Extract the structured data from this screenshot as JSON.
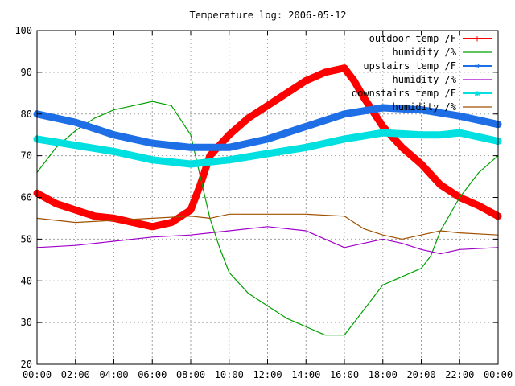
{
  "chart_data": {
    "type": "line",
    "title": "Temperature log: 2006-05-12",
    "xlabel": "",
    "ylabel": "",
    "grid": true,
    "legend_position": "top-right",
    "xlim": [
      "00:00",
      "24:00"
    ],
    "ylim": [
      20,
      100
    ],
    "x_ticks": [
      "00:00",
      "02:00",
      "04:00",
      "06:00",
      "08:00",
      "10:00",
      "12:00",
      "14:00",
      "16:00",
      "18:00",
      "20:00",
      "22:00",
      "00:00"
    ],
    "y_ticks": [
      20,
      30,
      40,
      50,
      60,
      70,
      80,
      90,
      100
    ],
    "series": [
      {
        "name": "outdoor temp /F",
        "color": "#ff0000",
        "style": "thick",
        "x": [
          "00:00",
          "01:00",
          "02:00",
          "03:00",
          "04:00",
          "05:00",
          "06:00",
          "07:00",
          "08:00",
          "08:30",
          "09:00",
          "10:00",
          "11:00",
          "12:00",
          "13:00",
          "14:00",
          "15:00",
          "16:00",
          "16:30",
          "17:00",
          "18:00",
          "19:00",
          "20:00",
          "21:00",
          "22:00",
          "23:00",
          "24:00"
        ],
        "values": [
          61,
          58.5,
          57,
          55.5,
          55,
          54,
          53,
          54,
          57,
          63,
          70,
          75,
          79,
          82,
          85,
          88,
          90,
          91,
          88,
          84,
          77,
          72,
          68,
          63,
          60,
          58,
          55.5
        ]
      },
      {
        "name": "humidity /%",
        "color": "#00a000",
        "style": "thin",
        "x": [
          "00:00",
          "01:00",
          "02:00",
          "03:00",
          "04:00",
          "05:00",
          "06:00",
          "07:00",
          "08:00",
          "08:30",
          "09:00",
          "09:30",
          "10:00",
          "11:00",
          "12:00",
          "13:00",
          "14:00",
          "15:00",
          "16:00",
          "17:00",
          "18:00",
          "19:00",
          "20:00",
          "20:30",
          "21:00",
          "22:00",
          "23:00",
          "24:00"
        ],
        "values": [
          66,
          72,
          76,
          79,
          81,
          82,
          83,
          82,
          75,
          65,
          55,
          48,
          42,
          37,
          34,
          31,
          29,
          27,
          27,
          33,
          39,
          41,
          43,
          46,
          52,
          60,
          66,
          70
        ]
      },
      {
        "name": "upstairs temp /F",
        "color": "#1e6fe6",
        "style": "thick",
        "x": [
          "00:00",
          "02:00",
          "04:00",
          "06:00",
          "08:00",
          "10:00",
          "12:00",
          "14:00",
          "16:00",
          "18:00",
          "20:00",
          "22:00",
          "24:00"
        ],
        "values": [
          80,
          78,
          75,
          73,
          72,
          72,
          74,
          77,
          80,
          81.5,
          81,
          79.5,
          77.5
        ]
      },
      {
        "name": "humidity /%",
        "color": "#a000c8",
        "style": "thin",
        "x": [
          "00:00",
          "02:00",
          "04:00",
          "06:00",
          "08:00",
          "10:00",
          "12:00",
          "14:00",
          "15:00",
          "16:00",
          "17:00",
          "18:00",
          "19:00",
          "20:00",
          "21:00",
          "22:00",
          "24:00"
        ],
        "values": [
          48,
          48.5,
          49.5,
          50.5,
          51,
          52,
          53,
          52,
          50,
          48,
          49,
          50,
          49,
          47.5,
          46.5,
          47.5,
          48
        ]
      },
      {
        "name": "downstairs temp /F",
        "color": "#00e0e0",
        "style": "thick",
        "x": [
          "00:00",
          "02:00",
          "04:00",
          "06:00",
          "08:00",
          "10:00",
          "12:00",
          "14:00",
          "16:00",
          "18:00",
          "20:00",
          "21:00",
          "22:00",
          "24:00"
        ],
        "values": [
          74,
          72.5,
          71,
          69,
          68,
          69,
          70.5,
          72,
          74,
          75.5,
          75,
          75,
          75.5,
          73.5
        ]
      },
      {
        "name": "humidity /%",
        "color": "#a05000",
        "style": "thin",
        "x": [
          "00:00",
          "02:00",
          "04:00",
          "06:00",
          "08:00",
          "09:00",
          "10:00",
          "12:00",
          "14:00",
          "16:00",
          "17:00",
          "18:00",
          "19:00",
          "20:00",
          "21:00",
          "22:00",
          "24:00"
        ],
        "values": [
          55,
          54,
          54.5,
          55,
          55.5,
          55,
          56,
          56,
          56,
          55.5,
          52.5,
          51,
          50,
          51,
          52,
          51.5,
          51
        ]
      }
    ]
  }
}
